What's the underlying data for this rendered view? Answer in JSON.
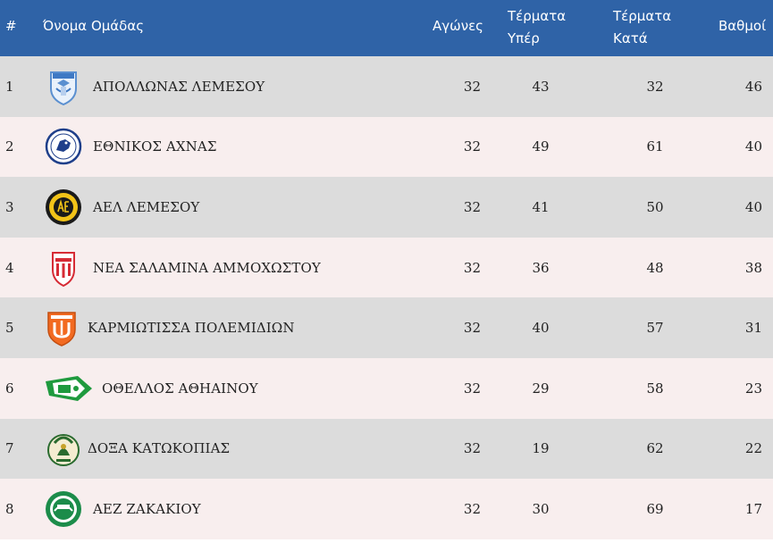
{
  "headers": {
    "rank": "#",
    "name": "Όνομα Ομάδας",
    "played": "Αγώνες",
    "goals_for_1": "Τέρματα",
    "goals_for_2": "Υπέρ",
    "goals_against_1": "Τέρματα",
    "goals_against_2": "Κατά",
    "points": "Βαθμοί"
  },
  "rows": [
    {
      "rank": "1",
      "name": "ΑΠΟΛΛΩΝΑΣ ΛΕΜΕΣΟΥ",
      "played": "32",
      "gf": "43",
      "ga": "32",
      "pts": "46",
      "logo": "apollon-shield-logo"
    },
    {
      "rank": "2",
      "name": "ΕΘΝΙΚΟΣ ΑΧΝΑΣ",
      "played": "32",
      "gf": "49",
      "ga": "61",
      "pts": "40",
      "logo": "ethnikos-achnas-logo"
    },
    {
      "rank": "3",
      "name": "ΑΕΛ ΛΕΜΕΣΟΥ",
      "played": "32",
      "gf": "41",
      "ga": "50",
      "pts": "40",
      "logo": "ael-limassol-logo"
    },
    {
      "rank": "4",
      "name": "ΝΕΑ ΣΑΛΑΜΙΝΑ ΑΜΜΟΧΩΣΤΟΥ",
      "played": "32",
      "gf": "36",
      "ga": "48",
      "pts": "38",
      "logo": "nea-salamis-logo"
    },
    {
      "rank": "5",
      "name": "ΚΑΡΜΙΩΤΙΣΣΑ ΠΟΛΕΜΙΔΙΩΝ",
      "played": "32",
      "gf": "40",
      "ga": "57",
      "pts": "31",
      "logo": "karmiotissa-logo"
    },
    {
      "rank": "6",
      "name": "ΟΘΕΛΛΟΣ ΑΘΗΑΙΝΟΥ",
      "played": "32",
      "gf": "29",
      "ga": "58",
      "pts": "23",
      "logo": "othellos-logo"
    },
    {
      "rank": "7",
      "name": "ΔΟΞΑ ΚΑΤΩΚΟΠΙΑΣ",
      "played": "32",
      "gf": "19",
      "ga": "62",
      "pts": "22",
      "logo": "doxa-logo"
    },
    {
      "rank": "8",
      "name": "ΑΕΖ ΖΑΚΑΚΙΟΥ",
      "played": "32",
      "gf": "30",
      "ga": "69",
      "pts": "17",
      "logo": "aez-logo"
    }
  ],
  "colors": {
    "header_bg": "#2f63a7",
    "row_odd": "#dcdcdc",
    "row_even": "#f8eeee"
  }
}
